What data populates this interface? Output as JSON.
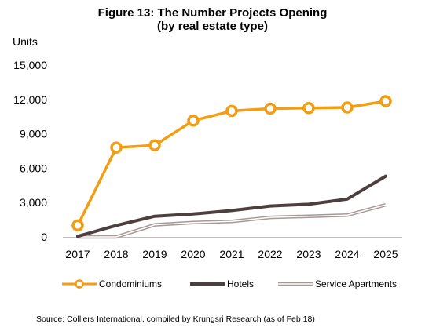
{
  "chart_data": {
    "type": "line",
    "title": "Figure 13: The Number Projects Opening",
    "subtitle": "(by real estate type)",
    "ylabel": "Units",
    "xlabel": "",
    "categories": [
      "2017",
      "2018",
      "2019",
      "2020",
      "2021",
      "2022",
      "2023",
      "2024",
      "2025"
    ],
    "ylim": [
      0,
      15000
    ],
    "yticks": [
      0,
      3000,
      6000,
      9000,
      12000,
      15000
    ],
    "ytick_labels": [
      "0",
      "3,000",
      "6,000",
      "9,000",
      "12,000",
      "15,000"
    ],
    "grid": false,
    "legend_position": "bottom",
    "series": [
      {
        "name": "Condominiums",
        "values": [
          1000,
          7800,
          8000,
          10150,
          11000,
          11200,
          11250,
          11300,
          11850
        ],
        "color": "#F29D12",
        "style": "line-with-hollow-markers"
      },
      {
        "name": "Hotels",
        "values": [
          50,
          1000,
          1800,
          2000,
          2300,
          2700,
          2850,
          3300,
          5300
        ],
        "color": "#4D3F3F",
        "style": "thick-line"
      },
      {
        "name": "Service Apartments",
        "values": [
          0,
          0,
          1050,
          1250,
          1350,
          1700,
          1800,
          1900,
          2800
        ],
        "color": "#A99898",
        "style": "double-line"
      }
    ]
  },
  "source_note": "Source: Colliers International, compiled by Krungsri Research (as of Feb 18)"
}
